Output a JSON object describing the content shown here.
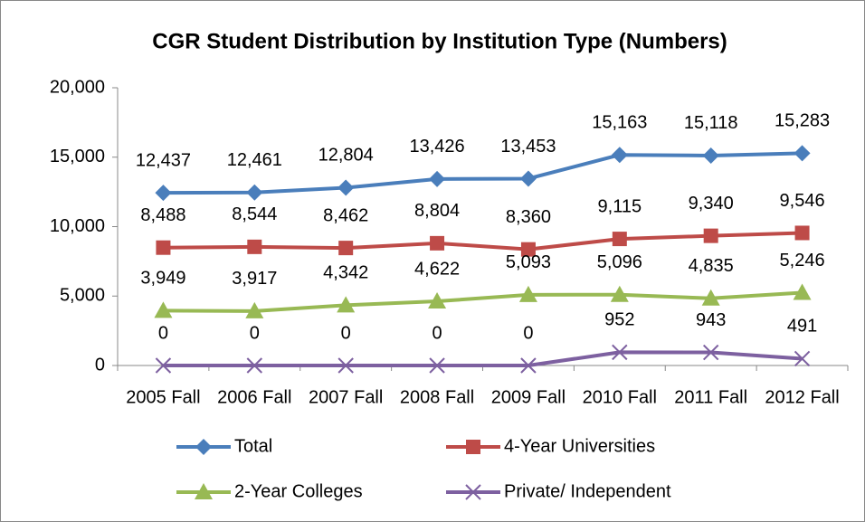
{
  "chart_data": {
    "type": "line",
    "title": "CGR Student Distribution by Institution Type (Numbers)",
    "categories": [
      "2005 Fall",
      "2006 Fall",
      "2007 Fall",
      "2008 Fall",
      "2009 Fall",
      "2010 Fall",
      "2011 Fall",
      "2012 Fall"
    ],
    "ylim": [
      0,
      20000
    ],
    "yticks": [
      0,
      {
        "value": 5000,
        "label": "5,000"
      },
      {
        "value": 10000,
        "label": "10,000"
      },
      {
        "value": 15000,
        "label": "15,000"
      },
      {
        "value": 20000,
        "label": "20,000"
      }
    ],
    "grid": false,
    "legend": "bottom",
    "series": [
      {
        "name": "Total",
        "color": "#4a7ebb",
        "marker": "diamond",
        "values": [
          12437,
          12461,
          12804,
          13426,
          13453,
          15163,
          15118,
          15283
        ],
        "value_labels": [
          "12,437",
          "12,461",
          "12,804",
          "13,426",
          "13,453",
          "15,163",
          "15,118",
          "15,283"
        ]
      },
      {
        "name": "4-Year Universities",
        "color": "#be4b48",
        "marker": "square",
        "values": [
          8488,
          8544,
          8462,
          8804,
          8360,
          9115,
          9340,
          9546
        ],
        "value_labels": [
          "8,488",
          "8,544",
          "8,462",
          "8,804",
          "8,360",
          "9,115",
          "9,340",
          "9,546"
        ]
      },
      {
        "name": "2-Year Colleges",
        "color": "#98b954",
        "marker": "triangle",
        "values": [
          3949,
          3917,
          4342,
          4622,
          5093,
          5096,
          4835,
          5246
        ],
        "value_labels": [
          "3,949",
          "3,917",
          "4,342",
          "4,622",
          "5,093",
          "5,096",
          "4,835",
          "5,246"
        ]
      },
      {
        "name": "Private/ Independent",
        "color": "#7d60a0",
        "marker": "x",
        "values": [
          0,
          0,
          0,
          0,
          0,
          952,
          943,
          491
        ]
      }
    ]
  }
}
